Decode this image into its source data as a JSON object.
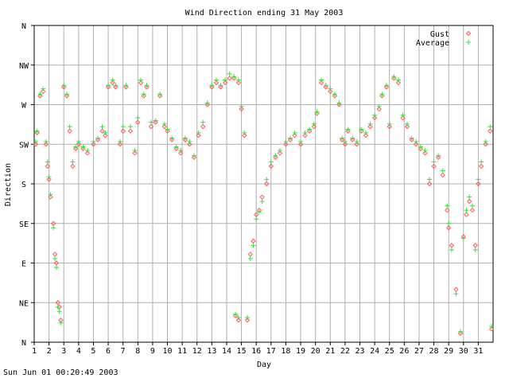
{
  "chart_data": {
    "type": "scatter",
    "title": "Wind Direction ending 31 May 2003",
    "xlabel": "Day",
    "ylabel": "Direction",
    "x_ticks": [
      "1",
      "2",
      "3",
      "4",
      "5",
      "6",
      "7",
      "8",
      "9",
      "10",
      "11",
      "12",
      "13",
      "14",
      "15",
      "16",
      "17",
      "18",
      "19",
      "20",
      "21",
      "22",
      "23",
      "24",
      "25",
      "26",
      "27",
      "28",
      "29",
      "30",
      "31"
    ],
    "y_ticks": [
      "N",
      "NE",
      "E",
      "SE",
      "S",
      "SW",
      "W",
      "NW",
      "N"
    ],
    "xlim": [
      1,
      32
    ],
    "ylim": [
      0,
      360
    ],
    "grid": true,
    "legend_position": "top-right",
    "colors": {
      "gust": "#ff5a5a",
      "average": "#3ddc3d",
      "grid": "#b0b0b0"
    },
    "series": [
      {
        "name": "Gust",
        "marker": "diamond",
        "points": [
          [
            1.1,
            225
          ],
          [
            1.2,
            238
          ],
          [
            1.4,
            280
          ],
          [
            1.6,
            285
          ],
          [
            1.8,
            225
          ],
          [
            1.9,
            200
          ],
          [
            2.0,
            185
          ],
          [
            2.1,
            165
          ],
          [
            2.3,
            135
          ],
          [
            2.4,
            100
          ],
          [
            2.5,
            90
          ],
          [
            2.6,
            45
          ],
          [
            2.7,
            40
          ],
          [
            2.8,
            25
          ],
          [
            3.0,
            290
          ],
          [
            3.2,
            280
          ],
          [
            3.4,
            240
          ],
          [
            3.6,
            200
          ],
          [
            3.8,
            220
          ],
          [
            4.0,
            225
          ],
          [
            4.3,
            220
          ],
          [
            4.6,
            215
          ],
          [
            5.0,
            225
          ],
          [
            5.3,
            230
          ],
          [
            5.6,
            240
          ],
          [
            5.8,
            235
          ],
          [
            6.0,
            290
          ],
          [
            6.3,
            295
          ],
          [
            6.5,
            290
          ],
          [
            6.8,
            225
          ],
          [
            7.0,
            240
          ],
          [
            7.2,
            290
          ],
          [
            7.5,
            240
          ],
          [
            7.8,
            215
          ],
          [
            8.0,
            250
          ],
          [
            8.2,
            295
          ],
          [
            8.4,
            280
          ],
          [
            8.6,
            290
          ],
          [
            8.9,
            245
          ],
          [
            9.2,
            250
          ],
          [
            9.5,
            280
          ],
          [
            9.8,
            245
          ],
          [
            10.0,
            240
          ],
          [
            10.3,
            230
          ],
          [
            10.6,
            220
          ],
          [
            10.9,
            215
          ],
          [
            11.2,
            230
          ],
          [
            11.5,
            225
          ],
          [
            11.8,
            210
          ],
          [
            12.1,
            235
          ],
          [
            12.4,
            245
          ],
          [
            12.7,
            270
          ],
          [
            13.0,
            290
          ],
          [
            13.3,
            295
          ],
          [
            13.6,
            290
          ],
          [
            13.9,
            295
          ],
          [
            14.2,
            300
          ],
          [
            14.5,
            300
          ],
          [
            14.8,
            295
          ],
          [
            15.0,
            265
          ],
          [
            15.2,
            235
          ],
          [
            14.6,
            30
          ],
          [
            14.8,
            25
          ],
          [
            15.4,
            25
          ],
          [
            15.6,
            100
          ],
          [
            15.8,
            115
          ],
          [
            16.0,
            145
          ],
          [
            16.2,
            150
          ],
          [
            16.4,
            165
          ],
          [
            16.7,
            180
          ],
          [
            17.0,
            200
          ],
          [
            17.3,
            210
          ],
          [
            17.6,
            215
          ],
          [
            18.0,
            225
          ],
          [
            18.3,
            230
          ],
          [
            18.6,
            235
          ],
          [
            19.0,
            225
          ],
          [
            19.3,
            235
          ],
          [
            19.6,
            240
          ],
          [
            19.9,
            245
          ],
          [
            20.1,
            260
          ],
          [
            20.4,
            295
          ],
          [
            20.7,
            290
          ],
          [
            21.0,
            285
          ],
          [
            21.3,
            280
          ],
          [
            21.6,
            270
          ],
          [
            21.8,
            230
          ],
          [
            22.0,
            225
          ],
          [
            22.2,
            240
          ],
          [
            22.5,
            230
          ],
          [
            22.8,
            225
          ],
          [
            23.1,
            240
          ],
          [
            23.4,
            235
          ],
          [
            23.7,
            245
          ],
          [
            24.0,
            255
          ],
          [
            24.3,
            265
          ],
          [
            24.5,
            280
          ],
          [
            24.8,
            290
          ],
          [
            25.0,
            245
          ],
          [
            25.3,
            300
          ],
          [
            25.6,
            295
          ],
          [
            25.9,
            255
          ],
          [
            26.2,
            245
          ],
          [
            26.5,
            230
          ],
          [
            26.8,
            225
          ],
          [
            27.1,
            220
          ],
          [
            27.4,
            215
          ],
          [
            27.7,
            180
          ],
          [
            28.0,
            200
          ],
          [
            28.3,
            210
          ],
          [
            28.6,
            190
          ],
          [
            28.9,
            150
          ],
          [
            29.0,
            130
          ],
          [
            29.2,
            110
          ],
          [
            29.5,
            60
          ],
          [
            29.8,
            10
          ],
          [
            30.0,
            120
          ],
          [
            30.2,
            145
          ],
          [
            30.4,
            160
          ],
          [
            30.6,
            150
          ],
          [
            30.8,
            110
          ],
          [
            31.0,
            180
          ],
          [
            31.2,
            200
          ],
          [
            31.5,
            225
          ],
          [
            31.8,
            240
          ],
          [
            31.9,
            15
          ]
        ]
      },
      {
        "name": "Average",
        "marker": "plus",
        "points": [
          [
            1.1,
            228
          ],
          [
            1.2,
            240
          ],
          [
            1.4,
            282
          ],
          [
            1.6,
            288
          ],
          [
            1.8,
            228
          ],
          [
            1.9,
            205
          ],
          [
            2.0,
            188
          ],
          [
            2.1,
            168
          ],
          [
            2.3,
            130
          ],
          [
            2.4,
            95
          ],
          [
            2.5,
            85
          ],
          [
            2.6,
            40
          ],
          [
            2.7,
            35
          ],
          [
            2.8,
            22
          ],
          [
            3.0,
            292
          ],
          [
            3.2,
            282
          ],
          [
            3.4,
            245
          ],
          [
            3.6,
            205
          ],
          [
            3.8,
            222
          ],
          [
            4.0,
            228
          ],
          [
            4.3,
            222
          ],
          [
            4.6,
            218
          ],
          [
            5.0,
            228
          ],
          [
            5.3,
            232
          ],
          [
            5.6,
            245
          ],
          [
            5.8,
            238
          ],
          [
            6.0,
            292
          ],
          [
            6.3,
            298
          ],
          [
            6.5,
            292
          ],
          [
            6.8,
            228
          ],
          [
            7.0,
            245
          ],
          [
            7.2,
            292
          ],
          [
            7.5,
            245
          ],
          [
            7.8,
            218
          ],
          [
            8.0,
            255
          ],
          [
            8.2,
            298
          ],
          [
            8.4,
            282
          ],
          [
            8.6,
            292
          ],
          [
            8.9,
            250
          ],
          [
            9.2,
            252
          ],
          [
            9.5,
            282
          ],
          [
            9.8,
            248
          ],
          [
            10.0,
            242
          ],
          [
            10.3,
            232
          ],
          [
            10.6,
            222
          ],
          [
            10.9,
            218
          ],
          [
            11.2,
            232
          ],
          [
            11.5,
            228
          ],
          [
            11.8,
            212
          ],
          [
            12.1,
            238
          ],
          [
            12.4,
            250
          ],
          [
            12.7,
            272
          ],
          [
            13.0,
            292
          ],
          [
            13.3,
            298
          ],
          [
            13.6,
            292
          ],
          [
            13.9,
            298
          ],
          [
            14.2,
            305
          ],
          [
            14.5,
            302
          ],
          [
            14.8,
            298
          ],
          [
            15.0,
            268
          ],
          [
            15.2,
            238
          ],
          [
            14.6,
            32
          ],
          [
            14.8,
            28
          ],
          [
            15.4,
            28
          ],
          [
            15.6,
            95
          ],
          [
            15.8,
            110
          ],
          [
            16.0,
            140
          ],
          [
            16.2,
            148
          ],
          [
            16.4,
            160
          ],
          [
            16.7,
            185
          ],
          [
            17.0,
            205
          ],
          [
            17.3,
            212
          ],
          [
            17.6,
            218
          ],
          [
            18.0,
            228
          ],
          [
            18.3,
            232
          ],
          [
            18.6,
            238
          ],
          [
            19.0,
            228
          ],
          [
            19.3,
            238
          ],
          [
            19.6,
            242
          ],
          [
            19.9,
            248
          ],
          [
            20.1,
            262
          ],
          [
            20.4,
            298
          ],
          [
            20.7,
            292
          ],
          [
            21.0,
            288
          ],
          [
            21.3,
            282
          ],
          [
            21.6,
            272
          ],
          [
            21.8,
            232
          ],
          [
            22.0,
            228
          ],
          [
            22.2,
            242
          ],
          [
            22.5,
            232
          ],
          [
            22.8,
            228
          ],
          [
            23.1,
            242
          ],
          [
            23.4,
            238
          ],
          [
            23.7,
            248
          ],
          [
            24.0,
            258
          ],
          [
            24.3,
            268
          ],
          [
            24.5,
            282
          ],
          [
            24.8,
            292
          ],
          [
            25.0,
            248
          ],
          [
            25.3,
            302
          ],
          [
            25.6,
            298
          ],
          [
            25.9,
            258
          ],
          [
            26.2,
            248
          ],
          [
            26.5,
            232
          ],
          [
            26.8,
            228
          ],
          [
            27.1,
            222
          ],
          [
            27.4,
            218
          ],
          [
            27.7,
            185
          ],
          [
            28.0,
            205
          ],
          [
            28.3,
            212
          ],
          [
            28.6,
            195
          ],
          [
            28.9,
            155
          ],
          [
            29.0,
            135
          ],
          [
            29.2,
            105
          ],
          [
            29.5,
            55
          ],
          [
            29.8,
            12
          ],
          [
            30.0,
            118
          ],
          [
            30.2,
            150
          ],
          [
            30.4,
            165
          ],
          [
            30.6,
            155
          ],
          [
            30.8,
            105
          ],
          [
            31.0,
            185
          ],
          [
            31.2,
            205
          ],
          [
            31.5,
            228
          ],
          [
            31.8,
            245
          ],
          [
            31.9,
            18
          ]
        ]
      }
    ]
  },
  "footer": {
    "timestamp": "Sun Jun 01 00:20:49 2003"
  }
}
